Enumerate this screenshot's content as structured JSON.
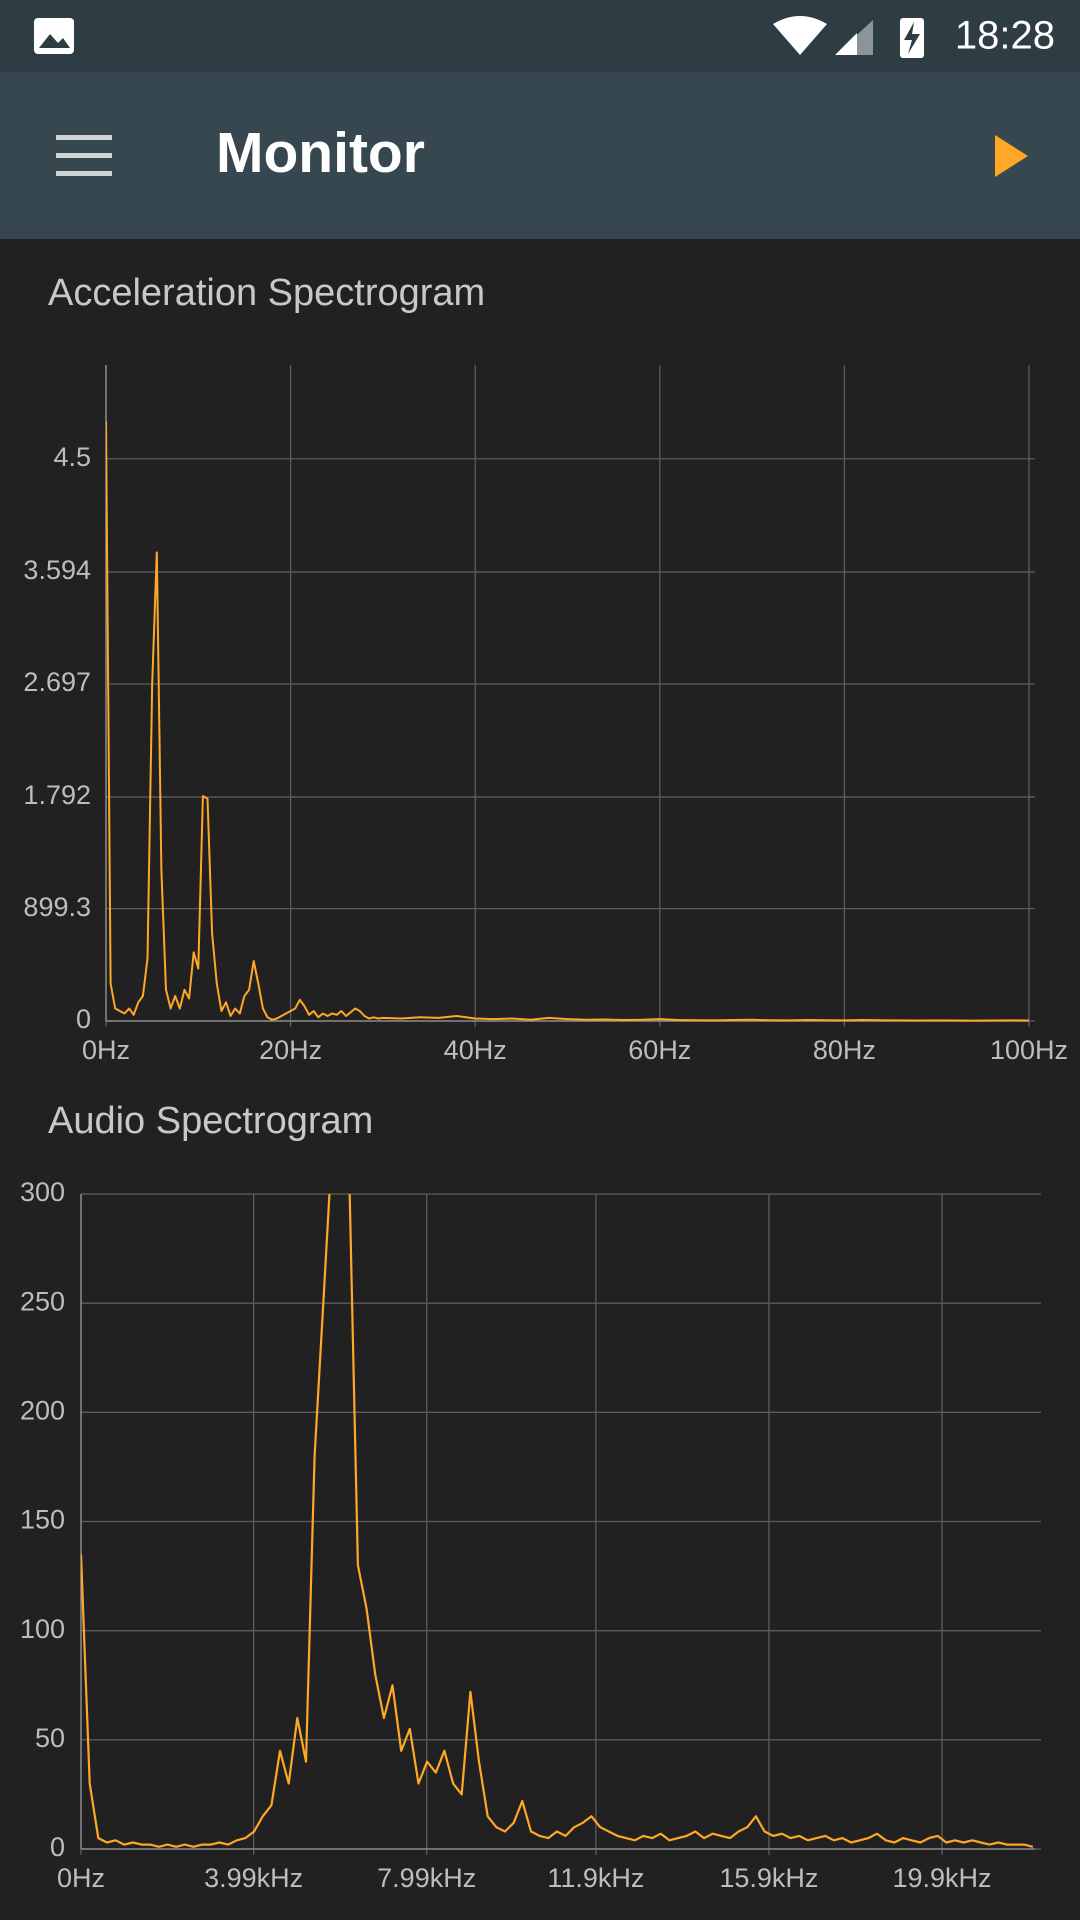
{
  "status_bar": {
    "time": "18:28"
  },
  "toolbar": {
    "title": "Monitor"
  },
  "chart_data": [
    {
      "type": "line",
      "title": "Acceleration Spectrogram",
      "color": "#ffa726",
      "grid": true,
      "xlim": [
        0,
        100
      ],
      "ylim": [
        0,
        5250
      ],
      "xticks": [
        {
          "value": 0,
          "label": "0Hz"
        },
        {
          "value": 20,
          "label": "20Hz"
        },
        {
          "value": 40,
          "label": "40Hz"
        },
        {
          "value": 60,
          "label": "60Hz"
        },
        {
          "value": 80,
          "label": "80Hz"
        },
        {
          "value": 100,
          "label": "100Hz"
        }
      ],
      "yticks": [
        0,
        899.3,
        {
          "value": 1792,
          "label": "1.792"
        },
        {
          "value": 2697,
          "label": "2.697"
        },
        {
          "value": 3594,
          "label": "3.594"
        },
        {
          "value": 4500,
          "label": "4.5"
        }
      ],
      "x": [
        0,
        0.5,
        1,
        1.5,
        2,
        2.5,
        3,
        3.5,
        4,
        4.5,
        5,
        5.5,
        6,
        6.5,
        7,
        7.5,
        8,
        8.5,
        9,
        9.5,
        10,
        10.5,
        11,
        11.5,
        12,
        12.5,
        13,
        13.5,
        14,
        14.5,
        15,
        15.5,
        16,
        16.5,
        17,
        17.5,
        18,
        18.5,
        19,
        19.5,
        20,
        20.5,
        21,
        21.5,
        22,
        22.5,
        23,
        23.5,
        24,
        24.5,
        25,
        25.5,
        26,
        26.5,
        27,
        27.5,
        28,
        28.5,
        29,
        29.5,
        30,
        32,
        34,
        36,
        38,
        40,
        42,
        44,
        46,
        48,
        50,
        52,
        54,
        56,
        58,
        60,
        62,
        64,
        66,
        68,
        70,
        72,
        74,
        76,
        78,
        80,
        82,
        84,
        86,
        88,
        90,
        92,
        94,
        96,
        98,
        100
      ],
      "values": [
        4800,
        300,
        100,
        80,
        60,
        100,
        50,
        150,
        200,
        500,
        2700,
        3750,
        1200,
        250,
        100,
        200,
        100,
        250,
        180,
        550,
        420,
        1800,
        1780,
        700,
        300,
        80,
        150,
        40,
        100,
        60,
        200,
        250,
        480,
        300,
        100,
        30,
        10,
        20,
        40,
        60,
        80,
        100,
        170,
        120,
        50,
        80,
        30,
        60,
        40,
        60,
        50,
        80,
        40,
        70,
        100,
        80,
        40,
        20,
        30,
        20,
        25,
        20,
        30,
        25,
        40,
        20,
        15,
        20,
        10,
        25,
        15,
        10,
        12,
        8,
        10,
        15,
        8,
        6,
        5,
        8,
        10,
        6,
        5,
        8,
        6,
        5,
        8,
        6,
        5,
        4,
        5,
        4,
        3,
        4,
        5,
        4
      ]
    },
    {
      "type": "line",
      "title": "Audio Spectrogram",
      "color": "#ffa726",
      "grid": true,
      "xlim": [
        0,
        22050
      ],
      "ylim": [
        0,
        300
      ],
      "xticks": [
        {
          "value": 0,
          "label": "0Hz"
        },
        {
          "value": 3990,
          "label": "3.99kHz"
        },
        {
          "value": 7990,
          "label": "7.99kHz"
        },
        {
          "value": 11900,
          "label": "11.9kHz"
        },
        {
          "value": 15900,
          "label": "15.9kHz"
        },
        {
          "value": 19900,
          "label": "19.9kHz"
        }
      ],
      "yticks": [
        0,
        50,
        100,
        150,
        200,
        250,
        300
      ],
      "x": [
        0,
        200,
        400,
        600,
        800,
        1000,
        1200,
        1400,
        1600,
        1800,
        2000,
        2200,
        2400,
        2600,
        2800,
        3000,
        3200,
        3400,
        3600,
        3800,
        4000,
        4200,
        4400,
        4600,
        4800,
        5000,
        5200,
        5400,
        5600,
        5800,
        6000,
        6200,
        6400,
        6600,
        6800,
        7000,
        7200,
        7400,
        7600,
        7800,
        8000,
        8200,
        8400,
        8600,
        8800,
        9000,
        9200,
        9400,
        9600,
        9800,
        10000,
        10200,
        10400,
        10600,
        10800,
        11000,
        11200,
        11400,
        11600,
        11800,
        12000,
        12200,
        12400,
        12600,
        12800,
        13000,
        13200,
        13400,
        13600,
        13800,
        14000,
        14200,
        14400,
        14600,
        14800,
        15000,
        15200,
        15400,
        15600,
        15800,
        16000,
        16200,
        16400,
        16600,
        16800,
        17000,
        17200,
        17400,
        17600,
        17800,
        18000,
        18200,
        18400,
        18600,
        18800,
        19000,
        19200,
        19400,
        19600,
        19800,
        20000,
        20200,
        20400,
        20600,
        20800,
        21000,
        21200,
        21400,
        21600,
        21800,
        22000
      ],
      "values": [
        135,
        30,
        5,
        3,
        4,
        2,
        3,
        2,
        2,
        1,
        2,
        1,
        2,
        1,
        2,
        2,
        3,
        2,
        4,
        5,
        8,
        15,
        20,
        45,
        30,
        60,
        40,
        180,
        250,
        320,
        330,
        310,
        130,
        110,
        80,
        60,
        75,
        45,
        55,
        30,
        40,
        35,
        45,
        30,
        25,
        72,
        40,
        15,
        10,
        8,
        12,
        22,
        8,
        6,
        5,
        8,
        6,
        10,
        12,
        15,
        10,
        8,
        6,
        5,
        4,
        6,
        5,
        7,
        4,
        5,
        6,
        8,
        5,
        7,
        6,
        5,
        8,
        10,
        15,
        8,
        6,
        7,
        5,
        6,
        4,
        5,
        6,
        4,
        5,
        3,
        4,
        5,
        7,
        4,
        3,
        5,
        4,
        3,
        5,
        6,
        3,
        4,
        3,
        4,
        3,
        2,
        3,
        2,
        2,
        2,
        1
      ]
    }
  ]
}
